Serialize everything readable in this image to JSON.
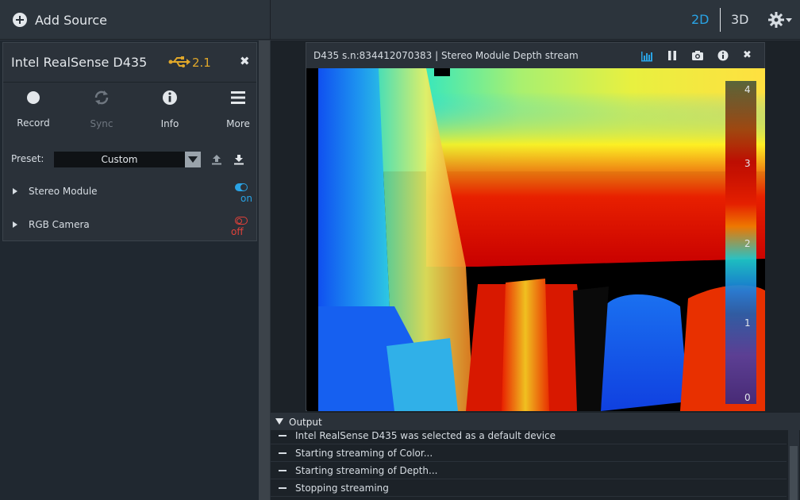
{
  "topbar": {
    "add_source_label": "Add Source",
    "view_2d_label": "2D",
    "view_3d_label": "3D",
    "active_view": "2D",
    "settings_icon": "gear-icon"
  },
  "device": {
    "name": "Intel RealSense D435",
    "usb_version": "2.1",
    "usb_icon": "usb-icon",
    "close_icon": "close-icon",
    "toolbar": [
      {
        "label": "Record",
        "icon": "record-icon"
      },
      {
        "label": "Sync",
        "icon": "sync-icon",
        "disabled": true
      },
      {
        "label": "Info",
        "icon": "info-icon"
      },
      {
        "label": "More",
        "icon": "hamburger-icon"
      }
    ],
    "preset_label": "Preset:",
    "preset_value": "Custom",
    "sensors": [
      {
        "name": "Stereo Module",
        "state": "on"
      },
      {
        "name": "RGB Camera",
        "state": "off"
      }
    ]
  },
  "stream": {
    "title": "D435 s.n:834412070383 | Stereo Module Depth stream",
    "buttons": [
      "histogram-icon",
      "pause-icon",
      "camera-icon",
      "info-icon",
      "close-icon"
    ],
    "colorbar_ticks": [
      "4",
      "3",
      "2",
      "1",
      "0"
    ]
  },
  "output": {
    "title": "Output",
    "lines": [
      "Intel RealSense D435 was selected as a default device",
      "Starting streaming of Color...",
      "Starting streaming of Depth...",
      "Stopping streaming"
    ]
  },
  "colors": {
    "accent": "#29a3e5",
    "usb": "#e0a72a",
    "off_red": "#e0413a"
  }
}
